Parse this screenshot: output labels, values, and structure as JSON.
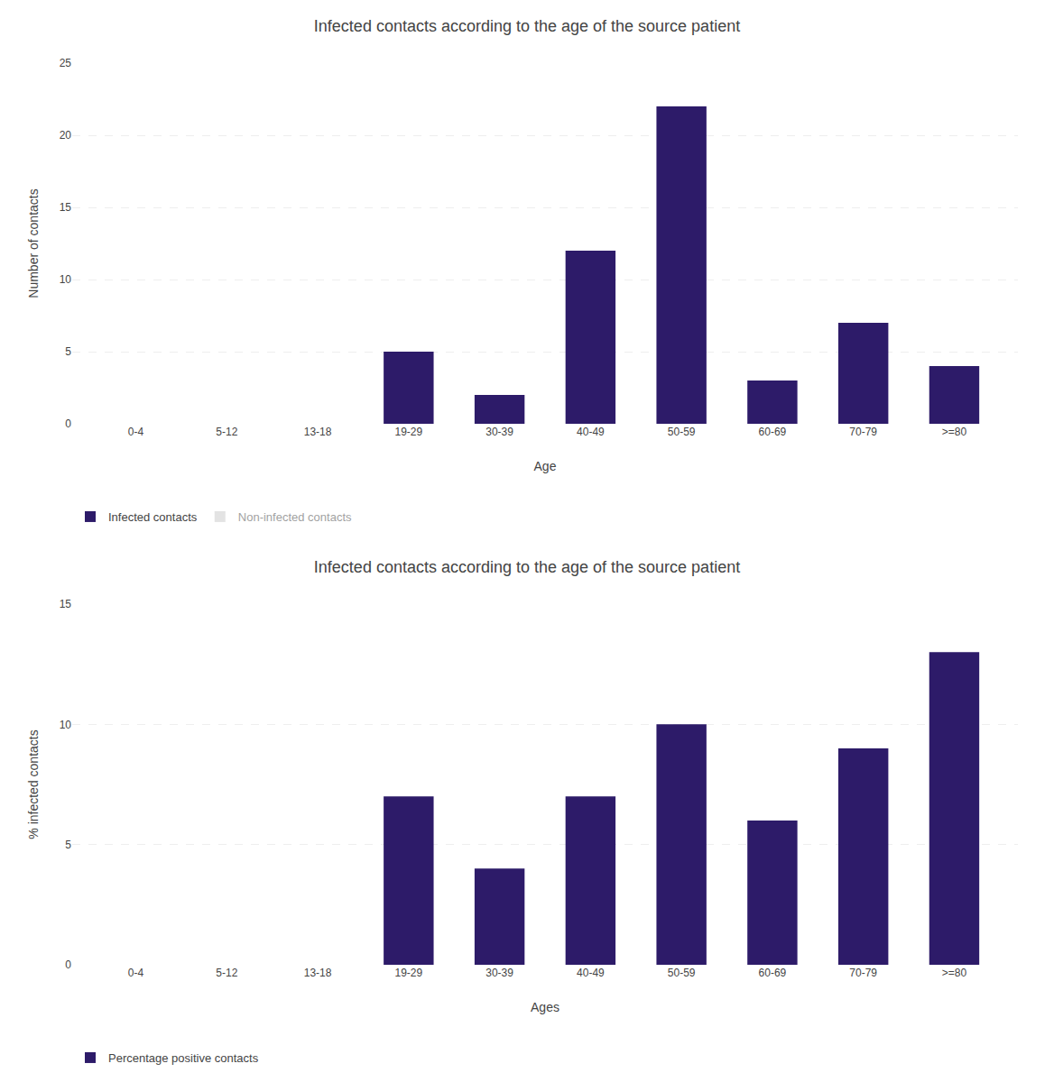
{
  "chart_data": [
    {
      "type": "bar",
      "title": "Infected contacts according to the age of the source patient",
      "categories": [
        "0-4",
        "5-12",
        "13-18",
        "19-29",
        "30-39",
        "40-49",
        "50-59",
        "60-69",
        "70-79",
        ">=80"
      ],
      "series": [
        {
          "name": "Infected contacts",
          "color": "#2d1b69",
          "values": [
            0,
            0,
            0,
            5,
            2,
            12,
            22,
            3,
            7,
            4
          ]
        },
        {
          "name": "Non-infected contacts",
          "color": "#c8c8c8",
          "values": [
            null,
            null,
            null,
            null,
            null,
            null,
            null,
            null,
            null,
            null
          ]
        }
      ],
      "xlabel": "Age",
      "ylabel": "Number of contacts",
      "ylim": [
        0,
        25
      ],
      "yticks": [
        0,
        5,
        10,
        15,
        20,
        25
      ],
      "grid": true,
      "legend": "bottom"
    },
    {
      "type": "bar",
      "title": "Infected contacts according to the age of the source patient",
      "categories": [
        "0-4",
        "5-12",
        "13-18",
        "19-29",
        "30-39",
        "40-49",
        "50-59",
        "60-69",
        "70-79",
        ">=80"
      ],
      "series": [
        {
          "name": "Percentage positive contacts",
          "color": "#2d1b69",
          "values": [
            0,
            0,
            0,
            7,
            4,
            7,
            10,
            6,
            9,
            13
          ]
        }
      ],
      "xlabel": "Ages",
      "ylabel": "% infected contacts",
      "ylim": [
        0,
        15
      ],
      "yticks": [
        0,
        5,
        10,
        15
      ],
      "grid": true,
      "legend": "bottom"
    }
  ]
}
